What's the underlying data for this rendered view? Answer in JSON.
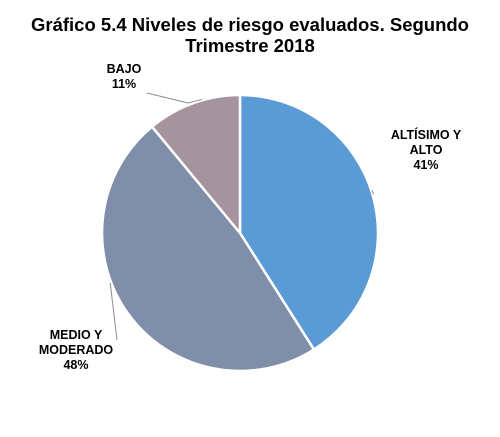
{
  "chart_data": {
    "type": "pie",
    "title_lines": [
      "Gráfico 5.4 Niveles de riesgo evaluados. Segundo",
      "Trimestre 2018"
    ],
    "slices": [
      {
        "label_lines": [
          "ALTÍSIMO Y",
          "ALTO"
        ],
        "percent_label": "41%",
        "value": 41,
        "color": "#5b9bd5"
      },
      {
        "label_lines": [
          "MEDIO Y",
          "MODERADO"
        ],
        "percent_label": "48%",
        "value": 48,
        "color": "#7f8fa9"
      },
      {
        "label_lines": [
          "BAJO"
        ],
        "percent_label": "11%",
        "value": 11,
        "color": "#a5939d"
      }
    ],
    "start_angle_deg": 0,
    "direction": "clockwise",
    "legend": "none"
  }
}
